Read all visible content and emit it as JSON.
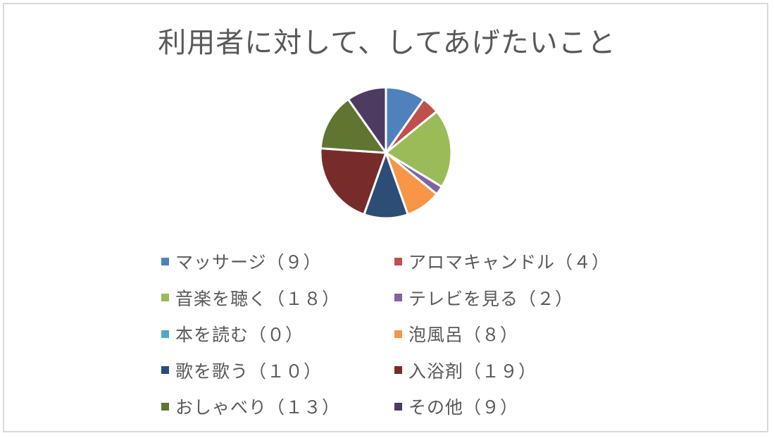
{
  "chart_data": {
    "type": "pie",
    "title": "利用者に対して、してあげたいこと",
    "legend_position": "bottom",
    "series": [
      {
        "name": "",
        "slices": [
          {
            "label": "マッサージ（９）",
            "value": 9,
            "color": "#4f81bd"
          },
          {
            "label": "アロマキャンドル（４）",
            "value": 4,
            "color": "#c0504d"
          },
          {
            "label": "音楽を聴く（１８）",
            "value": 18,
            "color": "#9bbb59"
          },
          {
            "label": "テレビを見る（２）",
            "value": 2,
            "color": "#8064a2"
          },
          {
            "label": "本を読む（０）",
            "value": 0,
            "color": "#4bacc6"
          },
          {
            "label": "泡風呂（８）",
            "value": 8,
            "color": "#f79646"
          },
          {
            "label": "歌を歌う（１０）",
            "value": 10,
            "color": "#2c4d75"
          },
          {
            "label": "入浴剤（１９）",
            "value": 19,
            "color": "#772c2a"
          },
          {
            "label": "おしゃべり（１３）",
            "value": 13,
            "color": "#5f7530"
          },
          {
            "label": "その他（９）",
            "value": 9,
            "color": "#4d3b62"
          }
        ]
      }
    ]
  }
}
